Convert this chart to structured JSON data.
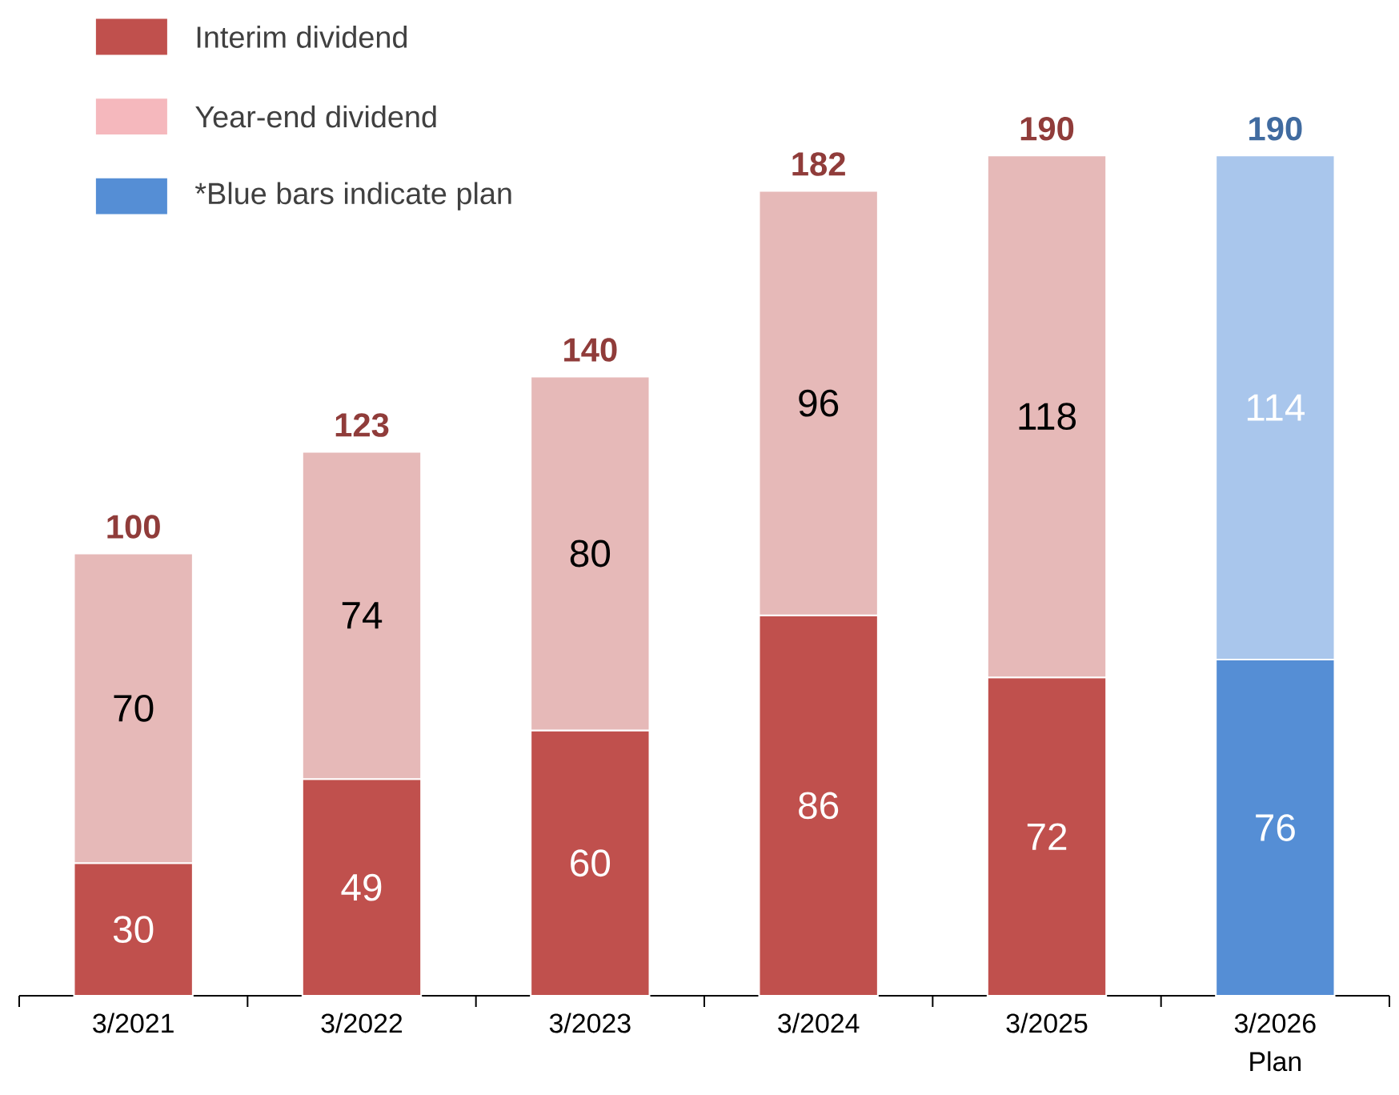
{
  "chart_data": {
    "type": "bar",
    "stacked": true,
    "categories": [
      "3/2021",
      "3/2022",
      "3/2023",
      "3/2024",
      "3/2025",
      "3/2026 Plan"
    ],
    "series": [
      {
        "name": "Interim dividend",
        "color": "#c0504d",
        "colors": [
          "#c0504d",
          "#c0504d",
          "#c0504d",
          "#c0504d",
          "#c0504d",
          "#558ed5"
        ],
        "values": [
          30,
          49,
          60,
          86,
          72,
          76
        ]
      },
      {
        "name": "Year-end dividend",
        "color": "#f5b8bd",
        "colors": [
          "#e6b9b8",
          "#e6b9b8",
          "#e6b9b8",
          "#e6b9b8",
          "#e6b9b8",
          "#a9c6ec"
        ],
        "values": [
          70,
          74,
          80,
          96,
          118,
          114
        ]
      }
    ],
    "totals": [
      "100",
      "123",
      "140",
      "182",
      "190",
      "190"
    ],
    "data_labels": true,
    "legend": "top left",
    "tick_labels": "x",
    "annotations": [
      "*Blue bars indicate plan"
    ]
  }
}
